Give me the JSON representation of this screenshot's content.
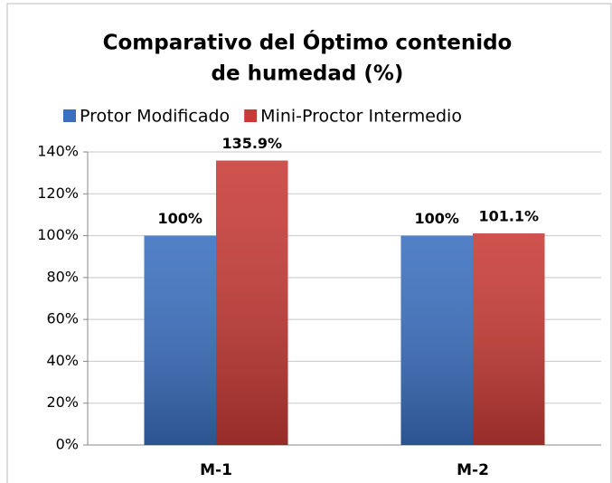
{
  "chart_data": {
    "type": "bar",
    "title": [
      "Comparativo del Óptimo contenido",
      "de humedad (%)"
    ],
    "categories": [
      "M-1",
      "M-2"
    ],
    "series": [
      {
        "name": "Protor Modificado",
        "color": "#3a6fc0",
        "values": [
          100,
          100
        ],
        "value_labels": [
          "100%",
          "100%"
        ]
      },
      {
        "name": "Mini-Proctor Intermedio",
        "color": "#c83a35",
        "values": [
          135.9,
          101.1
        ],
        "value_labels": [
          "135.9%",
          "101.1%"
        ]
      }
    ],
    "ylim": [
      0,
      140
    ],
    "yticks": [
      {
        "value": 0,
        "label": "0%"
      },
      {
        "value": 20,
        "label": "20%"
      },
      {
        "value": 40,
        "label": "40%"
      },
      {
        "value": 60,
        "label": "60%"
      },
      {
        "value": 80,
        "label": "80%"
      },
      {
        "value": 100,
        "label": "100%"
      },
      {
        "value": 120,
        "label": "120%"
      },
      {
        "value": 140,
        "label": "140%"
      }
    ],
    "grid": true,
    "legend": "top"
  }
}
